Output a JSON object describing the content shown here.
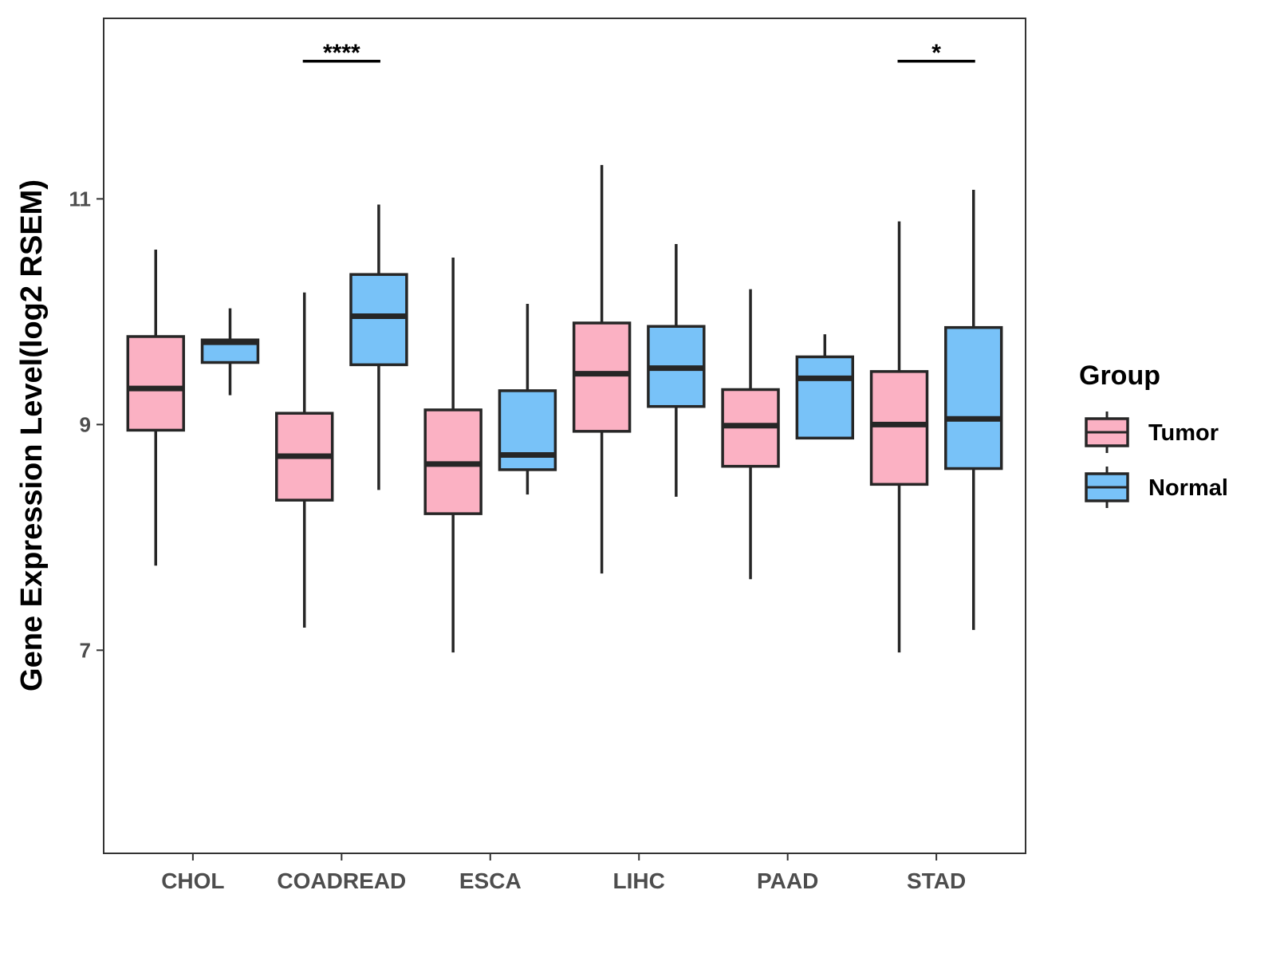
{
  "chart_data": {
    "type": "boxplot",
    "title": "",
    "xlabel": "",
    "ylabel": "Gene Expression Level(log2 RSEM)",
    "ylim": [
      5.2,
      12.6
    ],
    "yticks": [
      7,
      9,
      11
    ],
    "categories": [
      "CHOL",
      "COADREAD",
      "ESCA",
      "LIHC",
      "PAAD",
      "STAD"
    ],
    "legend": {
      "title": "Group",
      "position": "right",
      "entries": [
        {
          "name": "Tumor",
          "color": "#FBB1C3"
        },
        {
          "name": "Normal",
          "color": "#78C2F8"
        }
      ]
    },
    "series": [
      {
        "name": "Tumor",
        "color": "#FBB1C3",
        "boxes": [
          {
            "whisker_low": 7.75,
            "q1": 8.95,
            "median": 9.32,
            "q3": 9.78,
            "whisker_high": 10.55
          },
          {
            "whisker_low": 7.2,
            "q1": 8.33,
            "median": 8.72,
            "q3": 9.1,
            "whisker_high": 10.17
          },
          {
            "whisker_low": 6.98,
            "q1": 8.21,
            "median": 8.65,
            "q3": 9.13,
            "whisker_high": 10.48
          },
          {
            "whisker_low": 7.68,
            "q1": 8.94,
            "median": 9.45,
            "q3": 9.9,
            "whisker_high": 11.3
          },
          {
            "whisker_low": 7.63,
            "q1": 8.63,
            "median": 8.99,
            "q3": 9.31,
            "whisker_high": 10.2
          },
          {
            "whisker_low": 6.98,
            "q1": 8.47,
            "median": 9.0,
            "q3": 9.47,
            "whisker_high": 10.8
          }
        ]
      },
      {
        "name": "Normal",
        "color": "#78C2F8",
        "boxes": [
          {
            "whisker_low": 9.26,
            "q1": 9.55,
            "median": 9.73,
            "q3": 9.75,
            "whisker_high": 10.03
          },
          {
            "whisker_low": 8.42,
            "q1": 9.53,
            "median": 9.96,
            "q3": 10.33,
            "whisker_high": 10.95
          },
          {
            "whisker_low": 8.38,
            "q1": 8.6,
            "median": 8.73,
            "q3": 9.3,
            "whisker_high": 10.07
          },
          {
            "whisker_low": 8.36,
            "q1": 9.16,
            "median": 9.5,
            "q3": 9.87,
            "whisker_high": 10.6
          },
          {
            "whisker_low": 8.88,
            "q1": 8.88,
            "median": 9.41,
            "q3": 9.6,
            "whisker_high": 9.8
          },
          {
            "whisker_low": 7.18,
            "q1": 8.61,
            "median": 9.05,
            "q3": 9.86,
            "whisker_high": 11.08
          }
        ]
      }
    ],
    "annotations": [
      {
        "category": "COADREAD",
        "label": "****",
        "y": 12.22
      },
      {
        "category": "STAD",
        "label": "*",
        "y": 12.22
      }
    ]
  }
}
